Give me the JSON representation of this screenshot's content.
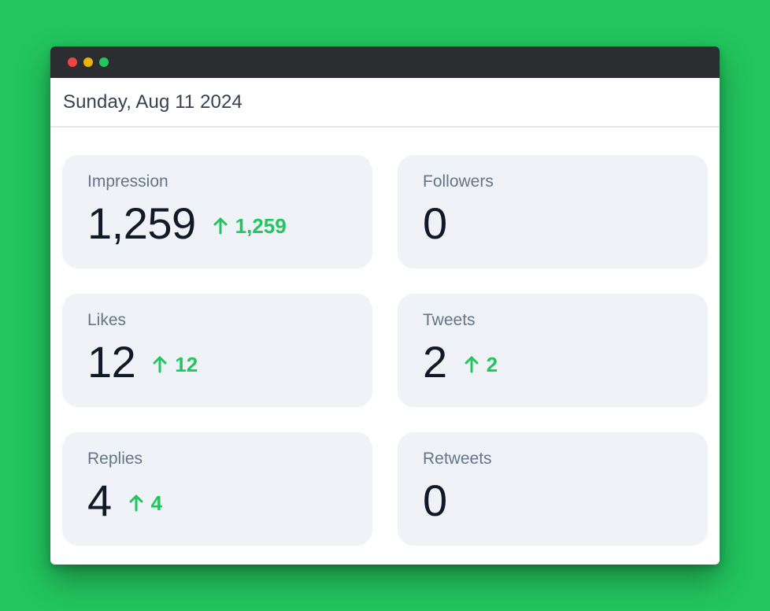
{
  "window": {
    "date": "Sunday, Aug 11 2024"
  },
  "colors": {
    "background": "#22c55e",
    "titlebar": "#2b2d31",
    "card": "#eff2f7",
    "delta_up": "#22c55e",
    "dot_close": "#ef4444",
    "dot_minimize": "#eab308",
    "dot_maximize": "#22c55e"
  },
  "stats": {
    "impression": {
      "label": "Impression",
      "value": "1,259",
      "delta": "1,259",
      "delta_icon": "arrow-up-icon"
    },
    "followers": {
      "label": "Followers",
      "value": "0"
    },
    "likes": {
      "label": "Likes",
      "value": "12",
      "delta": "12",
      "delta_icon": "arrow-up-icon"
    },
    "tweets": {
      "label": "Tweets",
      "value": "2",
      "delta": "2",
      "delta_icon": "arrow-up-icon"
    },
    "replies": {
      "label": "Replies",
      "value": "4",
      "delta": "4",
      "delta_icon": "arrow-up-icon"
    },
    "retweets": {
      "label": "Retweets",
      "value": "0"
    }
  }
}
